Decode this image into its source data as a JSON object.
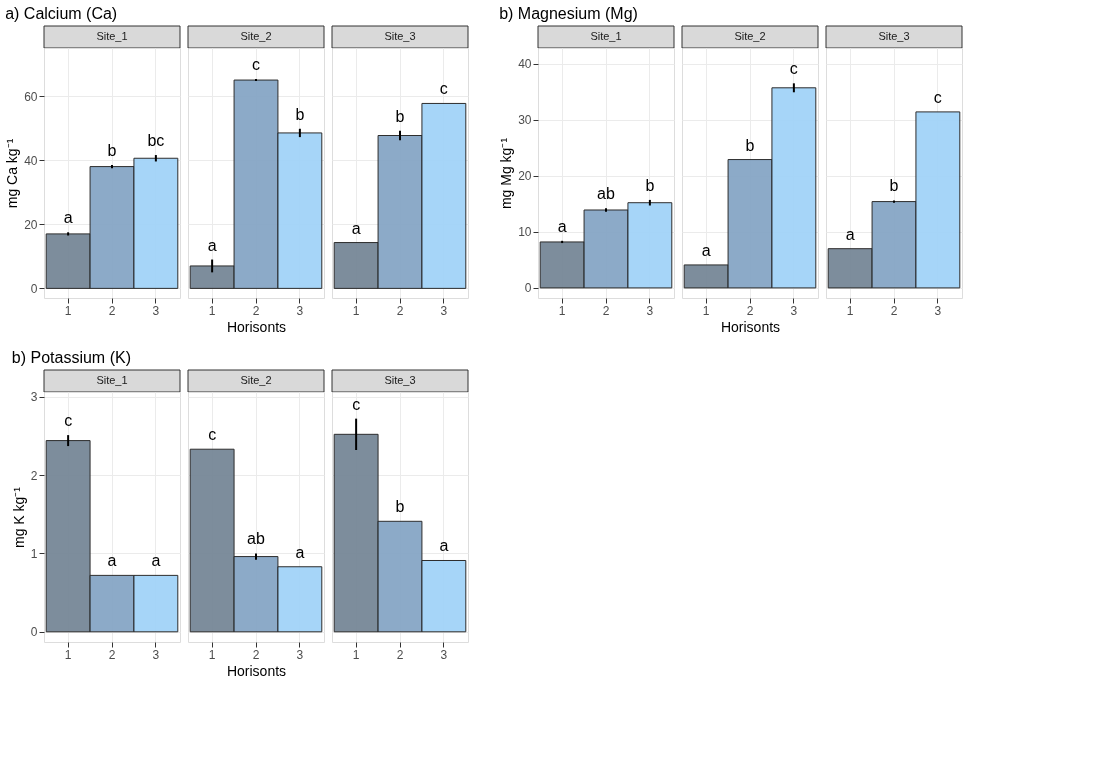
{
  "chart_data": [
    {
      "type": "bar",
      "title": "a) Calcium (Ca)",
      "subtitle": "Site_1",
      "ylabel": "mg Ca kg⁻¹",
      "categories": [
        "1",
        "2",
        "3"
      ],
      "values": [
        17,
        38,
        40.6
      ],
      "errors": [
        0.5,
        0.5,
        1
      ],
      "colors": [
        "#778797",
        "#86a6c6",
        "#a2d3f8"
      ],
      "ylim": [
        -3,
        75
      ],
      "yticks": [
        0,
        20,
        40,
        60
      ],
      "grid": true,
      "annotations": [
        "a",
        "b",
        "bc"
      ]
    },
    {
      "type": "bar",
      "subtitle": "Site_2",
      "xlabel": "Horisonts",
      "categories": [
        "1",
        "2",
        "3"
      ],
      "values": [
        7,
        65,
        48.5
      ],
      "errors": [
        2,
        0.3,
        1.3
      ],
      "colors": [
        "#778797",
        "#86a6c6",
        "#a2d3f8"
      ],
      "ylim": [
        -3,
        75
      ],
      "yticks": [
        0,
        20,
        40,
        60
      ],
      "grid": true,
      "tick_labels": "x",
      "annotations": [
        "a",
        "c",
        "b"
      ]
    },
    {
      "type": "bar",
      "subtitle": "Site_3",
      "categories": [
        "1",
        "2",
        "3"
      ],
      "values": [
        14.3,
        47.7,
        57.7
      ],
      "errors": [
        null,
        1.5,
        null
      ],
      "colors": [
        "#778797",
        "#86a6c6",
        "#a2d3f8"
      ],
      "ylim": [
        -3,
        75
      ],
      "yticks": [
        0,
        20,
        40,
        60
      ],
      "grid": true,
      "tick_labels": "x",
      "annotations": [
        "a",
        "b",
        "c"
      ]
    },
    {
      "type": "bar",
      "title": "b) Magnesium (Mg)",
      "subtitle": "Site_1",
      "ylabel": "mg Mg kg⁻¹",
      "categories": [
        "1",
        "2",
        "3"
      ],
      "values": [
        8.2,
        13.9,
        15.2
      ],
      "errors": [
        0.2,
        0.3,
        0.5
      ],
      "colors": [
        "#778797",
        "#86a6c6",
        "#a2d3f8"
      ],
      "ylim": [
        -1.8,
        42.8
      ],
      "yticks": [
        0,
        10,
        20,
        30,
        40
      ],
      "grid": true,
      "annotations": [
        "a",
        "ab",
        "b"
      ]
    },
    {
      "type": "bar",
      "subtitle": "Site_2",
      "xlabel": "Horisonts",
      "categories": [
        "1",
        "2",
        "3"
      ],
      "values": [
        4.1,
        22.9,
        35.7
      ],
      "errors": [
        null,
        null,
        0.8
      ],
      "colors": [
        "#778797",
        "#86a6c6",
        "#a2d3f8"
      ],
      "ylim": [
        -1.8,
        42.8
      ],
      "yticks": [
        0,
        10,
        20,
        30,
        40
      ],
      "grid": true,
      "tick_labels": "x",
      "annotations": [
        "a",
        "b",
        "c"
      ]
    },
    {
      "type": "bar",
      "subtitle": "Site_3",
      "categories": [
        "1",
        "2",
        "3"
      ],
      "values": [
        7,
        15.4,
        31.4
      ],
      "errors": [
        null,
        0.2,
        null
      ],
      "colors": [
        "#778797",
        "#86a6c6",
        "#a2d3f8"
      ],
      "ylim": [
        -1.8,
        42.8
      ],
      "yticks": [
        0,
        10,
        20,
        30,
        40
      ],
      "grid": true,
      "tick_labels": "x",
      "annotations": [
        "a",
        "b",
        "c"
      ]
    },
    {
      "type": "bar",
      "title": "b) Potassium (K)",
      "subtitle": "Site_1",
      "ylabel": "mg K kg⁻¹",
      "categories": [
        "1",
        "2",
        "3"
      ],
      "values": [
        2.44,
        0.72,
        0.72
      ],
      "errors": [
        0.07,
        null,
        null
      ],
      "colors": [
        "#778797",
        "#86a6c6",
        "#a2d3f8"
      ],
      "ylim": [
        -0.13,
        3.06
      ],
      "yticks": [
        0,
        1,
        2,
        3
      ],
      "grid": true,
      "annotations": [
        "c",
        "a",
        "a"
      ]
    },
    {
      "type": "bar",
      "subtitle": "Site_2",
      "xlabel": "Horisonts",
      "categories": [
        "1",
        "2",
        "3"
      ],
      "values": [
        2.33,
        0.96,
        0.83
      ],
      "errors": [
        null,
        0.04,
        null
      ],
      "colors": [
        "#778797",
        "#86a6c6",
        "#a2d3f8"
      ],
      "ylim": [
        -0.13,
        3.06
      ],
      "yticks": [
        0,
        1,
        2,
        3
      ],
      "grid": true,
      "tick_labels": "x",
      "annotations": [
        "c",
        "ab",
        "a"
      ]
    },
    {
      "type": "bar",
      "subtitle": "Site_3",
      "categories": [
        "1",
        "2",
        "3"
      ],
      "values": [
        2.52,
        1.41,
        0.91
      ],
      "errors": [
        0.2,
        null,
        null
      ],
      "colors": [
        "#778797",
        "#86a6c6",
        "#a2d3f8"
      ],
      "ylim": [
        -0.13,
        3.06
      ],
      "yticks": [
        0,
        1,
        2,
        3
      ],
      "grid": true,
      "tick_labels": "x",
      "annotations": [
        "c",
        "b",
        "a"
      ]
    }
  ]
}
